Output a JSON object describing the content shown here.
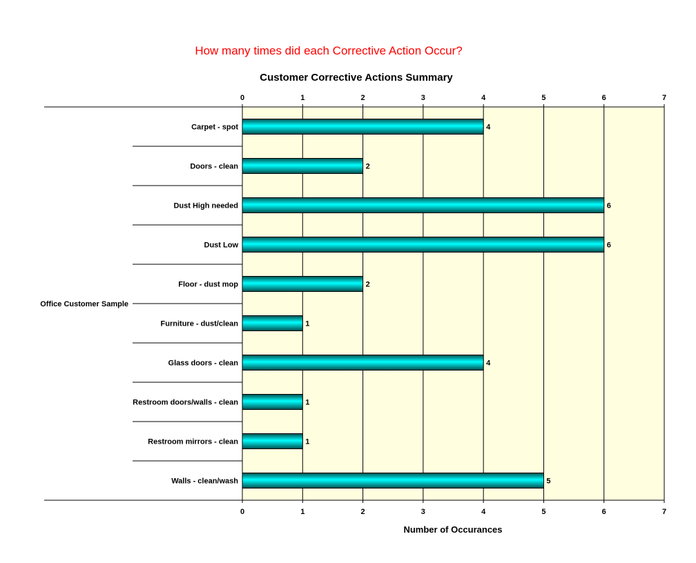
{
  "chart_data": {
    "type": "bar",
    "orientation": "horizontal",
    "title": "How many times did each Corrective Action Occur?",
    "subtitle": "Customer Corrective Actions Summary",
    "xlabel": "Number of Occurances",
    "ylabel": "",
    "group_label": "Office Customer Sample",
    "xlim": [
      0,
      7
    ],
    "x_ticks": [
      0,
      1,
      2,
      3,
      4,
      5,
      6,
      7
    ],
    "grid": true,
    "legend": "none",
    "categories": [
      "Carpet - spot",
      "Doors - clean",
      "Dust High needed",
      "Dust Low",
      "Floor - dust mop",
      "Furniture - dust/clean",
      "Glass doors - clean",
      "Restroom doors/walls - clean",
      "Restroom mirrors - clean",
      "Walls - clean/wash"
    ],
    "values": [
      4,
      2,
      6,
      6,
      2,
      1,
      4,
      1,
      1,
      5
    ],
    "colors": {
      "plot_background": "#ffffe0",
      "bar_fill": "#00e5e5",
      "bar_dark": "#006b6b",
      "title": "#ff0000"
    }
  }
}
